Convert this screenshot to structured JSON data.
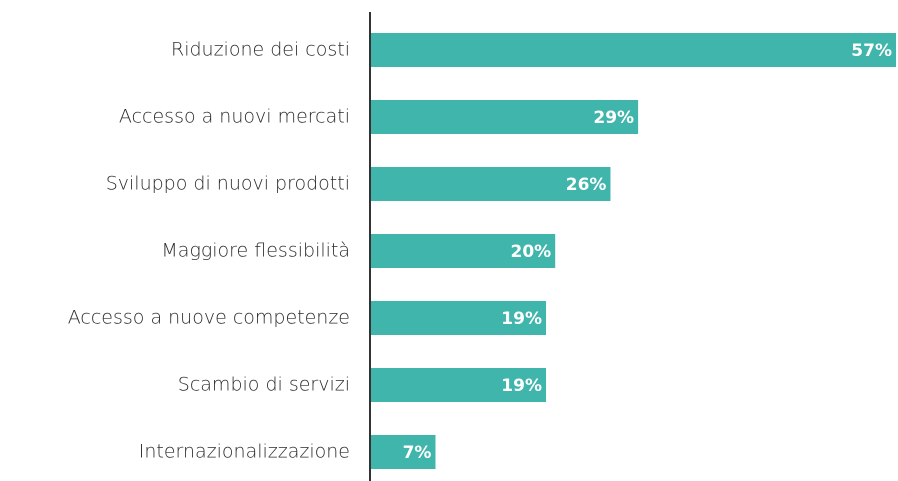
{
  "chart_data": {
    "type": "bar",
    "orientation": "horizontal",
    "categories": [
      "Riduzione dei costi",
      "Accesso a nuovi mercati",
      "Sviluppo di nuovi prodotti",
      "Maggiore flessibilità",
      "Accesso a nuove competenze",
      "Scambio di servizi",
      "Internazionalizzazione"
    ],
    "values": [
      57,
      29,
      26,
      20,
      19,
      19,
      7
    ],
    "value_labels": [
      "57%",
      "29%",
      "26%",
      "20%",
      "19%",
      "19%",
      "7%"
    ],
    "color": "#40b5ab"
  }
}
